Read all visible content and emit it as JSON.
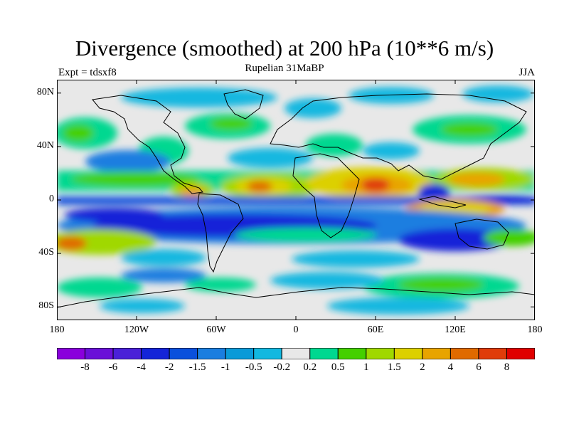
{
  "title": "Divergence (smoothed) at 200 hPa (10**6 m/s)",
  "subtitle": "Rupelian  31MaBP",
  "experiment": "Expt = tdsxf8",
  "season": "JJA",
  "map": {
    "projection": "cylindrical equidistant",
    "variable": "divergence (smoothed) at 200 hPa",
    "lon_range": [
      -180,
      180
    ],
    "lat_range": [
      -90,
      90
    ],
    "lat_ticks": [
      {
        "value": 80,
        "label": "80N"
      },
      {
        "value": 40,
        "label": "40N"
      },
      {
        "value": 0,
        "label": "0"
      },
      {
        "value": -40,
        "label": "40S"
      },
      {
        "value": -80,
        "label": "80S"
      }
    ],
    "lon_ticks": [
      {
        "value": -180,
        "label": "180"
      },
      {
        "value": -120,
        "label": "120W"
      },
      {
        "value": -60,
        "label": "60W"
      },
      {
        "value": 0,
        "label": "0"
      },
      {
        "value": 60,
        "label": "60E"
      },
      {
        "value": 120,
        "label": "120E"
      },
      {
        "value": 180,
        "label": "180"
      }
    ]
  },
  "colorbar": {
    "labels": [
      "-8",
      "-6",
      "-4",
      "-2",
      "-1.5",
      "-1",
      "-0.5",
      "-0.2",
      "0.2",
      "0.5",
      "1",
      "1.5",
      "2",
      "4",
      "6",
      "8"
    ],
    "colors": [
      "#8a00dc",
      "#6a10d8",
      "#4a20d8",
      "#1424d8",
      "#0a50dc",
      "#1a7ee0",
      "#0a9ad8",
      "#12b8e0",
      "#e8e8e8",
      "#00d890",
      "#44d000",
      "#a0d800",
      "#dcd000",
      "#e8a400",
      "#e06a00",
      "#e03c0a",
      "#e00000"
    ]
  }
}
